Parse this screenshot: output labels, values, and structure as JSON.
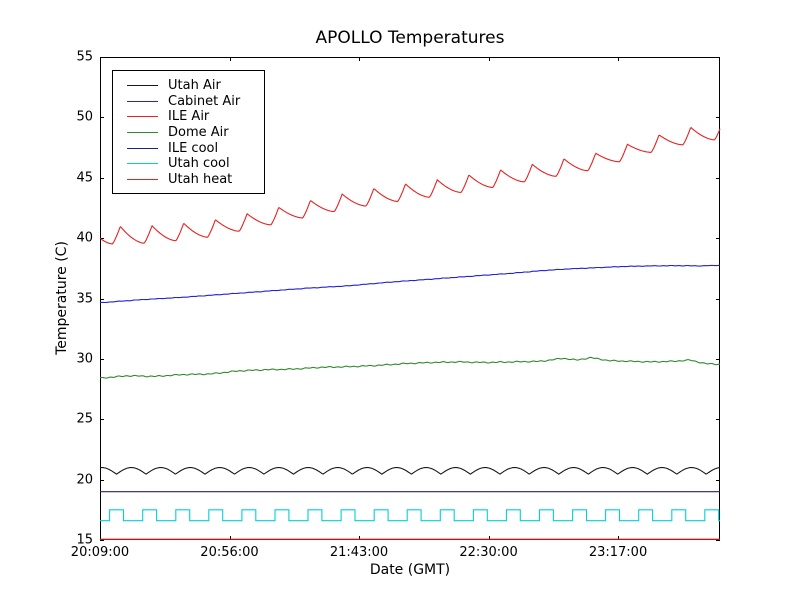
{
  "figure": {
    "title": "APOLLO Temperatures",
    "background_color": "#ffffff",
    "axes_color": "#000000"
  },
  "chart_data": {
    "type": "line",
    "title": "APOLLO Temperatures",
    "xlabel": "Date (GMT)",
    "ylabel": "Temperature (C)",
    "grid": false,
    "legend_position": "upper-left",
    "x_axis": {
      "tick_labels": [
        "20:09:00",
        "20:56:00",
        "21:43:00",
        "22:30:00",
        "23:17:00"
      ],
      "tick_minutes": [
        0,
        47,
        94,
        141,
        188
      ],
      "range_minutes": [
        0,
        225
      ]
    },
    "y_axis": {
      "ticks": [
        15,
        20,
        25,
        30,
        35,
        40,
        45,
        50,
        55
      ],
      "range": [
        15,
        55
      ]
    },
    "series": [
      {
        "name": "Utah Air",
        "color": "#1a1a1a",
        "waveform": "scallop",
        "description": "gently scalloped wave, rounded tops with sharp dips",
        "base": 20.45,
        "amplitude": 0.55,
        "period_min": 10.7,
        "phase_min": 4.7
      },
      {
        "name": "Cabinet Air",
        "color": "#2222dd",
        "waveform": "smooth",
        "noise_amp": 0.02,
        "points": [
          [
            0,
            34.65
          ],
          [
            15,
            34.9
          ],
          [
            30,
            35.1
          ],
          [
            45,
            35.35
          ],
          [
            60,
            35.6
          ],
          [
            75,
            35.85
          ],
          [
            90,
            36.05
          ],
          [
            105,
            36.35
          ],
          [
            120,
            36.6
          ],
          [
            135,
            36.85
          ],
          [
            150,
            37.1
          ],
          [
            160,
            37.3
          ],
          [
            170,
            37.45
          ],
          [
            180,
            37.55
          ],
          [
            190,
            37.65
          ],
          [
            200,
            37.7
          ],
          [
            210,
            37.72
          ],
          [
            218,
            37.7
          ],
          [
            225,
            37.75
          ]
        ]
      },
      {
        "name": "ILE Air",
        "color": "#e62222",
        "waveform": "sawtooth",
        "description": "rising sawtooth: sharp rise then slow concave decay each ~11.5 min",
        "amplitude": 1.45,
        "period_min": 11.5,
        "first_trough_min": 4.5,
        "rise_fraction": 0.25,
        "trough_points": [
          [
            0,
            39.5
          ],
          [
            20,
            39.6
          ],
          [
            40,
            40.1
          ],
          [
            60,
            41.0
          ],
          [
            80,
            42.0
          ],
          [
            100,
            42.8
          ],
          [
            120,
            43.4
          ],
          [
            140,
            44.1
          ],
          [
            160,
            44.9
          ],
          [
            180,
            45.7
          ],
          [
            195,
            46.8
          ],
          [
            205,
            47.4
          ],
          [
            215,
            47.9
          ],
          [
            225,
            48.2
          ]
        ]
      },
      {
        "name": "Dome Air",
        "color": "#2e8b2e",
        "waveform": "smooth",
        "noise_amp": 0.05,
        "points": [
          [
            0,
            28.4
          ],
          [
            10,
            28.6
          ],
          [
            20,
            28.55
          ],
          [
            30,
            28.7
          ],
          [
            40,
            28.75
          ],
          [
            50,
            29.0
          ],
          [
            60,
            29.1
          ],
          [
            70,
            29.15
          ],
          [
            80,
            29.3
          ],
          [
            90,
            29.35
          ],
          [
            100,
            29.45
          ],
          [
            110,
            29.6
          ],
          [
            120,
            29.7
          ],
          [
            130,
            29.75
          ],
          [
            140,
            29.7
          ],
          [
            150,
            29.75
          ],
          [
            160,
            29.8
          ],
          [
            168,
            30.05
          ],
          [
            173,
            29.9
          ],
          [
            178,
            30.1
          ],
          [
            185,
            29.85
          ],
          [
            192,
            29.8
          ],
          [
            200,
            29.75
          ],
          [
            208,
            29.8
          ],
          [
            214,
            29.9
          ],
          [
            220,
            29.6
          ],
          [
            225,
            29.55
          ]
        ]
      },
      {
        "name": "ILE cool",
        "color": "#202080",
        "waveform": "constant",
        "value": 19.0
      },
      {
        "name": "Utah cool",
        "color": "#00d0d8",
        "waveform": "square",
        "description": "square-wave pulses",
        "low": 16.6,
        "high": 17.5,
        "period_min": 12.0,
        "first_rise_min": 3.5,
        "duty": 0.42
      },
      {
        "name": "Utah heat",
        "color": "#e62222",
        "waveform": "constant",
        "description": "flat along bottom axis",
        "value": 15.07
      }
    ]
  }
}
